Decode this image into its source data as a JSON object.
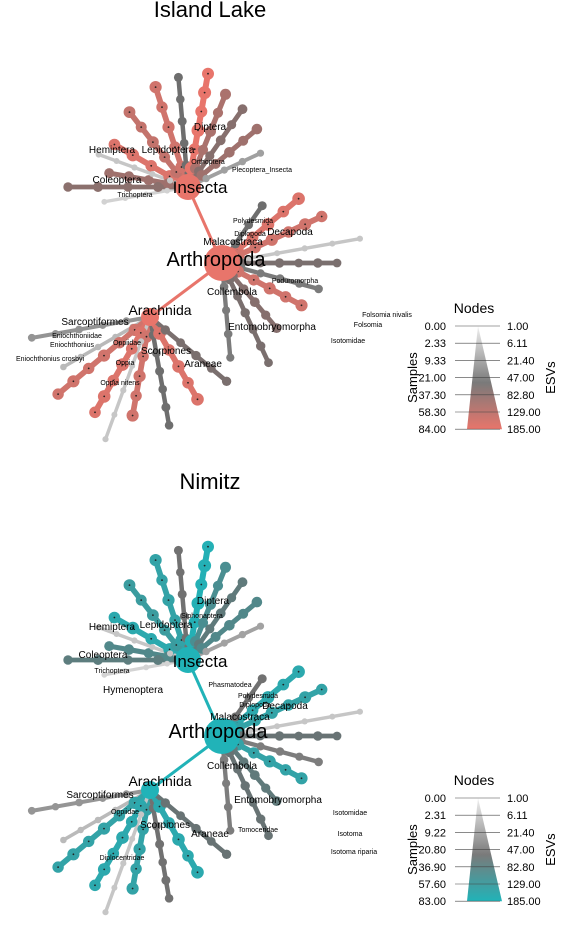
{
  "panels": [
    {
      "title": "Island Lake",
      "color": "#e8756b",
      "legend": {
        "title": "Nodes",
        "left_axis": "Samples",
        "right_axis": "ESVs",
        "samples": [
          "0.00",
          "2.33",
          "9.33",
          "21.00",
          "37.30",
          "58.30",
          "84.00"
        ],
        "esvs": [
          "1.00",
          "6.11",
          "21.40",
          "47.00",
          "82.80",
          "129.00",
          "185.00"
        ]
      },
      "labels": {
        "root": "Arthropoda",
        "insecta": "Insecta",
        "arachnida": "Arachnida",
        "diptera": "Diptera",
        "hemiptera": "Hemiptera",
        "lepidoptera": "Lepidoptera",
        "orthoptera": "Orthoptera",
        "plecoptera_insecta": "Plecoptera_Insecta",
        "coleoptera": "Coleoptera",
        "trichoptera": "Trichoptera",
        "polydesmida": "Polydesmida",
        "diplopoda": "Diplopoda",
        "decapoda": "Decapoda",
        "malacostraca": "Malacostraca",
        "poduromorpha": "Poduromorpha",
        "collembola": "Collembola",
        "folsomia_nivalis": "Folsomia nivalis",
        "folsomia": "Folsomia",
        "entomobryomorpha": "Entomobryomorpha",
        "isotomidae": "Isotomidae",
        "sarcoptiformes": "Sarcoptiformes",
        "eniochthoniidae": "Eniochthoniidae",
        "eniochthonius": "Eniochthonius",
        "oppiidae": "Oppiidae",
        "eniochthonius_crosbyi": "Eniochthonius crosbyi",
        "oppia": "Oppia",
        "scorpiones": "Scorpiones",
        "araneae": "Araneae",
        "oppia_nitens": "Oppia nitens"
      }
    },
    {
      "title": "Nimitz",
      "color": "#21b3b8",
      "legend": {
        "title": "Nodes",
        "left_axis": "Samples",
        "right_axis": "ESVs",
        "samples": [
          "0.00",
          "2.31",
          "9.22",
          "20.80",
          "36.90",
          "57.60",
          "83.00"
        ],
        "esvs": [
          "1.00",
          "6.11",
          "21.40",
          "47.00",
          "82.80",
          "129.00",
          "185.00"
        ]
      },
      "labels": {
        "root": "Arthropoda",
        "insecta": "Insecta",
        "arachnida": "Arachnida",
        "diptera": "Diptera",
        "siphonaptera": "Siphonaptera",
        "hemiptera": "Hemiptera",
        "lepidoptera": "Lepidoptera",
        "coleoptera": "Coleoptera",
        "trichoptera": "Trichoptera",
        "hymenoptera": "Hymenoptera",
        "phasmatodea": "Phasmatodea",
        "polydesmida": "Polydesmida",
        "decapoda": "Decapoda",
        "diplopoda": "Diplopoda",
        "malacostraca": "Malacostraca",
        "collembola": "Collembola",
        "entomobryomorpha": "Entomobryomorpha",
        "isotomidae": "Isotomidae",
        "isotoma": "Isotoma",
        "isotoma_riparia": "Isotoma riparia",
        "sarcoptiformes": "Sarcoptiformes",
        "oppiidae": "Oppiidae",
        "scorpiones": "Scorpiones",
        "araneae": "Araneae",
        "tomoceridae": "Tomoceridae",
        "diplocentridae": "Diplocentridae"
      }
    }
  ]
}
